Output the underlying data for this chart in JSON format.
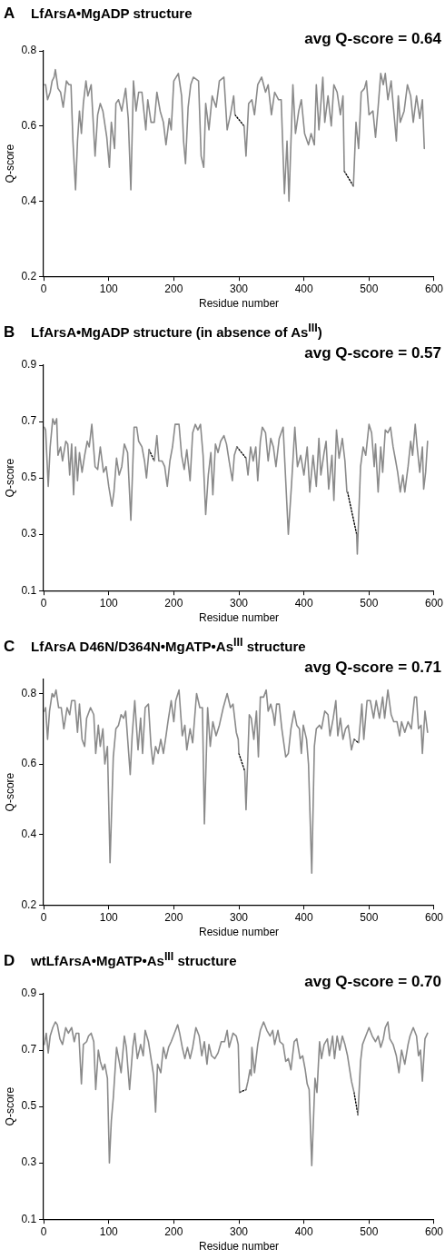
{
  "chart_data": [
    {
      "type": "line",
      "title": "LfArsA•MgADP structure",
      "xlabel": "Residue number",
      "ylabel": "Q-score",
      "annotations": [
        "A",
        "avg Q-score = 0.64"
      ],
      "xlim": [
        0,
        600
      ],
      "xticks": [
        0,
        100,
        200,
        300,
        400,
        500,
        600
      ],
      "ylim": [
        0.2,
        0.8
      ],
      "yticks": [
        0.2,
        0.4,
        0.6,
        0.8
      ],
      "series": [
        {
          "color": "#8a8a8a",
          "x": [
            1,
            3,
            6,
            10,
            13,
            16,
            18,
            22,
            26,
            30,
            35,
            39,
            42,
            45,
            49,
            52,
            55,
            58,
            61,
            65,
            68,
            73,
            79,
            83,
            87,
            91,
            97,
            101,
            104,
            109,
            111,
            115,
            120,
            126,
            130,
            134,
            138,
            142,
            146,
            151,
            157,
            160,
            165,
            170,
            174,
            179,
            184,
            188,
            193,
            196,
            200,
            207,
            212,
            215,
            218,
            222,
            226,
            230,
            238,
            242,
            246,
            249,
            254,
            259,
            265,
            270,
            277,
            282,
            287,
            292,
            294,
            301,
            308,
            311,
            315,
            320,
            324,
            329,
            335,
            341,
            345,
            350,
            355,
            361,
            365,
            370,
            374,
            377,
            383,
            387,
            392,
            396,
            401,
            407,
            411,
            416,
            419,
            423,
            429,
            432,
            437,
            442,
            446,
            451,
            456,
            460,
            462,
            469,
            476,
            480,
            484,
            488,
            493,
            496,
            500,
            506,
            510,
            514,
            518,
            522,
            525,
            529,
            534,
            539,
            542,
            545,
            548,
            554,
            559,
            564,
            568,
            573,
            578,
            582,
            585
          ],
          "values": [
            0.71,
            0.71,
            0.67,
            0.69,
            0.72,
            0.73,
            0.75,
            0.7,
            0.69,
            0.65,
            0.72,
            0.71,
            0.71,
            0.56,
            0.43,
            0.56,
            0.64,
            0.58,
            0.66,
            0.72,
            0.68,
            0.71,
            0.52,
            0.63,
            0.66,
            0.64,
            0.57,
            0.49,
            0.61,
            0.54,
            0.66,
            0.67,
            0.64,
            0.7,
            0.62,
            0.43,
            0.72,
            0.64,
            0.69,
            0.69,
            0.59,
            0.67,
            0.61,
            0.61,
            0.69,
            0.64,
            0.61,
            0.55,
            0.62,
            0.59,
            0.72,
            0.74,
            0.68,
            0.56,
            0.5,
            0.65,
            0.71,
            0.73,
            0.72,
            0.52,
            0.49,
            0.66,
            0.59,
            0.68,
            0.65,
            0.72,
            0.73,
            0.59,
            0.63,
            0.68,
            0.63,
            null,
            0.6,
            0.52,
            0.66,
            0.67,
            0.63,
            0.71,
            0.73,
            0.69,
            0.71,
            0.63,
            0.69,
            0.67,
            0.67,
            0.42,
            0.56,
            0.4,
            0.71,
            0.58,
            0.64,
            0.67,
            0.58,
            0.55,
            0.58,
            0.55,
            0.71,
            0.59,
            0.73,
            0.61,
            0.68,
            0.6,
            0.71,
            0.69,
            0.63,
            0.68,
            0.48,
            null,
            0.44,
            0.61,
            0.54,
            0.69,
            0.7,
            0.72,
            0.63,
            0.64,
            0.57,
            0.65,
            0.74,
            0.71,
            0.74,
            0.67,
            0.72,
            0.62,
            0.56,
            0.68,
            0.61,
            0.64,
            0.71,
            0.68,
            0.61,
            0.68,
            0.62,
            0.67,
            0.54
          ]
        },
        {
          "color": "#000000",
          "line_style": "dotted",
          "x": [
            294,
            308,
            400,
            462,
            476
          ],
          "values": [
            0.63,
            0.6,
            null,
            0.48,
            0.44
          ]
        }
      ]
    },
    {
      "type": "line",
      "title": "LfArsA•MgADP structure (in absence of As$^{III}$)",
      "xlabel": "Residue number",
      "ylabel": "Q-score",
      "annotations": [
        "B",
        "avg Q-score = 0.57"
      ],
      "xlim": [
        0,
        600
      ],
      "xticks": [
        0,
        100,
        200,
        300,
        400,
        500,
        600
      ],
      "ylim": [
        0.1,
        0.9
      ],
      "yticks": [
        0.1,
        0.3,
        0.5,
        0.7,
        0.9
      ],
      "series": [
        {
          "color": "#8a8a8a",
          "x": [
            1,
            3,
            7,
            10,
            14,
            17,
            20,
            22,
            26,
            29,
            34,
            37,
            40,
            43,
            46,
            49,
            52,
            55,
            59,
            63,
            67,
            70,
            74,
            79,
            83,
            87,
            92,
            96,
            100,
            105,
            108,
            112,
            116,
            120,
            124,
            129,
            134,
            139,
            143,
            146,
            151,
            155,
            158,
            162,
            166,
            170,
            174,
            177,
            182,
            186,
            190,
            194,
            198,
            202,
            208,
            212,
            216,
            220,
            225,
            229,
            233,
            237,
            241,
            245,
            249,
            253,
            257,
            260,
            264,
            268,
            272,
            277,
            281,
            285,
            290,
            293,
            297,
            304,
            311,
            314,
            318,
            322,
            326,
            329,
            333,
            336,
            341,
            345,
            349,
            353,
            357,
            362,
            368,
            372,
            376,
            381,
            386,
            390,
            395,
            400,
            405,
            409,
            414,
            419,
            423,
            426,
            431,
            434,
            438,
            443,
            446,
            450,
            454,
            459,
            463,
            466,
            467,
            474,
            481,
            482,
            487,
            491,
            495,
            500,
            504,
            508,
            510,
            514,
            518,
            521,
            525,
            529,
            533,
            537,
            541,
            544,
            548,
            552,
            555,
            560,
            564,
            567,
            571,
            574,
            578,
            582,
            584,
            587,
            590
          ],
          "values": [
            0.68,
            0.67,
            0.47,
            0.61,
            0.71,
            0.69,
            0.71,
            0.58,
            0.61,
            0.56,
            0.63,
            0.62,
            0.51,
            0.62,
            0.44,
            0.61,
            0.49,
            0.59,
            0.52,
            0.58,
            0.63,
            0.61,
            0.69,
            0.54,
            0.53,
            0.61,
            0.52,
            0.54,
            0.47,
            0.4,
            0.45,
            0.57,
            0.51,
            0.54,
            0.62,
            0.59,
            0.35,
            0.68,
            0.68,
            0.63,
            0.61,
            0.56,
            0.5,
            0.6,
            null,
            0.56,
            0.65,
            0.56,
            0.56,
            0.54,
            0.47,
            0.56,
            0.61,
            0.69,
            0.69,
            0.58,
            0.53,
            0.6,
            0.49,
            0.66,
            0.69,
            0.67,
            0.69,
            0.58,
            0.37,
            0.51,
            0.59,
            0.44,
            0.62,
            0.59,
            0.63,
            0.65,
            0.62,
            0.56,
            0.49,
            0.58,
            0.61,
            null,
            0.57,
            0.51,
            0.61,
            0.56,
            0.61,
            0.49,
            0.63,
            0.68,
            0.66,
            0.56,
            0.64,
            0.61,
            0.54,
            0.64,
            0.68,
            0.49,
            0.3,
            0.48,
            0.68,
            0.54,
            0.58,
            0.51,
            0.61,
            0.45,
            0.58,
            0.47,
            0.64,
            0.51,
            0.59,
            0.63,
            0.46,
            0.58,
            0.42,
            0.67,
            0.57,
            0.64,
            0.56,
            0.45,
            0.45,
            null,
            0.3,
            0.23,
            0.54,
            0.61,
            0.58,
            0.69,
            0.66,
            0.54,
            0.62,
            0.45,
            0.61,
            0.52,
            0.67,
            0.66,
            0.68,
            0.61,
            0.56,
            0.52,
            0.45,
            0.51,
            0.45,
            0.54,
            0.63,
            0.58,
            0.69,
            0.61,
            0.52,
            0.61,
            0.46,
            0.52,
            0.63
          ]
        },
        {
          "color": "#000000",
          "line_style": "dotted",
          "x": [
            162,
            170,
            230,
            297,
            311,
            400,
            467,
            481
          ],
          "values": [
            0.6,
            0.56,
            null,
            0.61,
            0.57,
            null,
            0.45,
            0.3
          ]
        }
      ]
    },
    {
      "type": "line",
      "title": "LfArsA D46N/D364N•MgATP•As$^{III}$ structure",
      "xlabel": "Residue number",
      "ylabel": "Q-score",
      "annotations": [
        "C",
        "avg Q-score = 0.71"
      ],
      "xlim": [
        0,
        600
      ],
      "xticks": [
        0,
        100,
        200,
        300,
        400,
        500,
        600
      ],
      "ylim": [
        0.2,
        0.84
      ],
      "yticks": [
        0.2,
        0.4,
        0.6,
        0.8
      ],
      "series": [
        {
          "color": "#8a8a8a",
          "x": [
            1,
            3,
            6,
            9,
            13,
            16,
            19,
            23,
            27,
            31,
            36,
            40,
            43,
            48,
            52,
            55,
            59,
            63,
            66,
            72,
            77,
            80,
            84,
            87,
            91,
            94,
            98,
            102,
            107,
            111,
            115,
            119,
            123,
            126,
            133,
            136,
            140,
            145,
            149,
            152,
            156,
            161,
            165,
            168,
            172,
            176,
            180,
            184,
            188,
            191,
            196,
            200,
            203,
            208,
            213,
            217,
            220,
            225,
            229,
            235,
            240,
            244,
            247,
            252,
            256,
            260,
            265,
            270,
            276,
            282,
            287,
            291,
            296,
            299,
            300,
            305,
            309,
            311,
            316,
            319,
            323,
            327,
            330,
            333,
            338,
            342,
            345,
            349,
            353,
            355,
            358,
            362,
            366,
            372,
            376,
            380,
            385,
            389,
            393,
            396,
            399,
            404,
            407,
            412,
            416,
            419,
            424,
            427,
            432,
            437,
            440,
            445,
            449,
            452,
            456,
            460,
            464,
            468,
            471,
            473,
            477,
            480,
            484,
            489,
            492,
            497,
            502,
            507,
            511,
            516,
            521,
            524,
            529,
            534,
            538,
            543,
            547,
            550,
            555,
            560,
            565,
            570,
            573,
            576,
            580,
            582,
            586,
            590
          ],
          "values": [
            0.75,
            0.76,
            0.67,
            0.75,
            0.8,
            0.79,
            0.81,
            0.76,
            0.76,
            0.7,
            0.76,
            0.74,
            0.78,
            0.78,
            0.69,
            0.77,
            0.67,
            0.65,
            0.73,
            0.76,
            0.74,
            0.63,
            0.71,
            0.65,
            0.7,
            0.6,
            0.65,
            0.32,
            0.62,
            0.7,
            0.71,
            0.74,
            0.73,
            0.75,
            0.57,
            0.68,
            0.78,
            0.64,
            0.73,
            0.63,
            0.76,
            0.77,
            0.65,
            0.6,
            0.65,
            0.63,
            0.67,
            0.63,
            0.68,
            0.72,
            0.78,
            0.72,
            0.78,
            0.81,
            0.68,
            0.71,
            0.64,
            0.7,
            0.66,
            0.8,
            0.76,
            0.76,
            0.43,
            0.76,
            0.65,
            0.72,
            0.68,
            0.71,
            0.76,
            0.8,
            0.76,
            0.77,
            0.69,
            0.67,
            0.63,
            null,
            0.58,
            0.47,
            0.74,
            0.73,
            0.67,
            0.75,
            0.62,
            0.79,
            0.79,
            0.81,
            0.75,
            0.77,
            0.74,
            0.71,
            0.77,
            0.77,
            0.7,
            0.62,
            0.63,
            0.7,
            0.75,
            0.71,
            0.7,
            0.63,
            0.71,
            0.67,
            0.6,
            0.29,
            0.65,
            0.7,
            0.71,
            0.7,
            0.75,
            0.74,
            0.68,
            0.73,
            0.78,
            0.68,
            0.73,
            0.67,
            0.7,
            0.71,
            0.67,
            0.64,
            0.67,
            null,
            0.66,
            0.77,
            0.67,
            0.78,
            0.78,
            0.73,
            0.78,
            0.73,
            0.79,
            0.73,
            0.81,
            0.74,
            0.72,
            0.72,
            0.68,
            0.72,
            0.69,
            0.72,
            0.7,
            0.79,
            0.79,
            0.7,
            0.71,
            0.63,
            0.75,
            0.69
          ]
        },
        {
          "color": "#000000",
          "line_style": "dotted",
          "x": [
            300,
            309,
            400,
            477,
            484
          ],
          "values": [
            0.63,
            0.58,
            null,
            0.67,
            0.66
          ]
        }
      ]
    },
    {
      "type": "line",
      "title": "wtLfArsA•MgATP•As$^{III}$ structure",
      "xlabel": "Residue number",
      "ylabel": "Q-score",
      "annotations": [
        "D",
        "avg Q-score = 0.70"
      ],
      "xlim": [
        0,
        600
      ],
      "xticks": [
        0,
        100,
        200,
        300,
        400,
        500,
        600
      ],
      "ylim": [
        0.1,
        0.9
      ],
      "yticks": [
        0.1,
        0.3,
        0.5,
        0.7,
        0.9
      ],
      "series": [
        {
          "color": "#8a8a8a",
          "x": [
            1,
            4,
            7,
            10,
            14,
            18,
            21,
            25,
            29,
            34,
            38,
            43,
            47,
            50,
            54,
            58,
            61,
            66,
            69,
            73,
            77,
            80,
            84,
            87,
            91,
            94,
            98,
            101,
            104,
            107,
            112,
            116,
            119,
            124,
            127,
            132,
            137,
            140,
            144,
            149,
            153,
            156,
            161,
            165,
            169,
            172,
            175,
            180,
            184,
            188,
            192,
            196,
            201,
            206,
            209,
            213,
            217,
            221,
            225,
            229,
            234,
            239,
            243,
            247,
            251,
            254,
            258,
            263,
            268,
            273,
            278,
            282,
            285,
            291,
            296,
            299,
            301,
            306,
            311,
            314,
            317,
            319,
            320,
            324,
            329,
            333,
            338,
            343,
            348,
            352,
            355,
            360,
            363,
            368,
            372,
            376,
            380,
            385,
            389,
            394,
            398,
            402,
            405,
            408,
            412,
            417,
            420,
            424,
            427,
            431,
            436,
            439,
            444,
            447,
            451,
            455,
            459,
            463,
            467,
            473,
            477,
            480,
            483,
            487,
            490,
            495,
            500,
            505,
            510,
            514,
            518,
            522,
            525,
            529,
            532,
            537,
            542,
            546,
            550,
            555,
            560,
            563,
            568,
            573,
            576,
            579,
            582,
            586,
            590
          ],
          "values": [
            0.72,
            0.76,
            0.69,
            0.75,
            0.78,
            0.8,
            0.79,
            0.74,
            0.72,
            0.78,
            0.76,
            0.78,
            0.73,
            0.76,
            0.76,
            0.58,
            0.72,
            0.73,
            0.75,
            0.76,
            0.73,
            0.56,
            0.7,
            0.66,
            0.63,
            0.65,
            0.6,
            0.3,
            0.45,
            0.53,
            0.71,
            0.66,
            0.62,
            0.75,
            0.71,
            0.56,
            0.71,
            0.76,
            0.67,
            0.72,
            0.68,
            0.77,
            0.73,
            0.67,
            0.61,
            0.48,
            0.65,
            0.62,
            0.71,
            0.67,
            0.71,
            0.73,
            0.76,
            0.79,
            0.76,
            0.71,
            0.67,
            0.71,
            0.67,
            0.71,
            0.78,
            0.75,
            0.68,
            0.73,
            0.65,
            0.72,
            0.68,
            0.67,
            0.69,
            0.73,
            0.73,
            0.77,
            0.71,
            0.76,
            0.75,
            0.72,
            0.55,
            null,
            0.56,
            0.59,
            0.63,
            0.61,
            0.71,
            0.62,
            0.72,
            0.77,
            0.8,
            0.77,
            0.75,
            0.77,
            0.72,
            0.77,
            0.73,
            0.72,
            0.66,
            0.67,
            0.63,
            0.73,
            0.74,
            0.67,
            0.68,
            0.63,
            0.58,
            0.56,
            0.29,
            0.6,
            0.55,
            0.73,
            0.67,
            0.72,
            0.74,
            0.68,
            0.75,
            0.67,
            0.75,
            0.7,
            0.75,
            0.72,
            0.68,
            0.59,
            0.55,
            null,
            0.47,
            0.66,
            0.72,
            0.75,
            0.78,
            0.75,
            0.73,
            0.75,
            0.71,
            0.74,
            0.78,
            0.8,
            0.74,
            0.72,
            0.68,
            0.62,
            0.7,
            0.65,
            0.72,
            0.75,
            0.78,
            0.75,
            0.68,
            0.7,
            0.59,
            0.74,
            0.76
          ]
        },
        {
          "color": "#000000",
          "line_style": "dotted",
          "x": [
            301,
            311,
            400,
            477,
            483
          ],
          "values": [
            0.55,
            0.56,
            null,
            0.55,
            0.47
          ]
        }
      ]
    }
  ]
}
